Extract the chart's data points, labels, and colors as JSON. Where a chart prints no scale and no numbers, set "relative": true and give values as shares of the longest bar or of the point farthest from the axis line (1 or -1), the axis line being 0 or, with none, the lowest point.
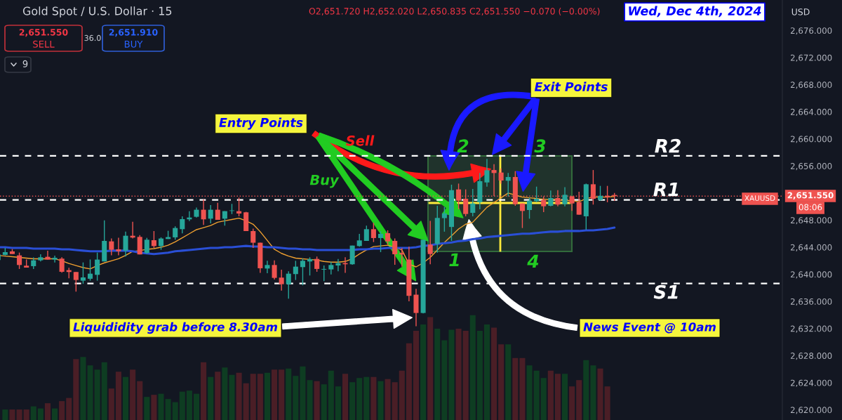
{
  "chart_data": [
    {
      "type": "candlestick",
      "title": "Gold Spot / U.S. Dollar · 15",
      "subtitle": "O2,651.720 H2,652.020 L2,650.835 C2,651.550 −0.070 (−0.00%)",
      "categories": [
        null,
        null,
        null,
        null,
        null,
        null,
        null,
        null,
        null,
        null,
        null,
        null,
        null,
        null,
        null,
        null,
        null,
        null,
        null,
        null,
        null,
        null,
        null,
        null,
        null,
        null,
        null,
        null,
        null,
        null,
        null,
        null,
        null,
        null,
        null,
        null,
        null,
        null,
        null,
        null,
        null,
        null,
        null,
        null,
        null,
        null,
        null,
        null,
        null,
        null,
        null,
        null,
        null,
        null,
        null,
        null,
        null,
        null,
        null,
        null,
        null,
        null,
        null,
        null,
        null,
        null,
        null,
        null,
        null,
        null,
        null,
        null,
        null,
        null,
        null,
        null,
        null,
        null,
        null,
        null,
        null,
        null,
        null,
        null,
        null,
        null,
        null,
        null
      ],
      "ohlc": [
        [
          2642.11,
          2643.0,
          2642.0,
          2642.94
        ],
        [
          2642.87,
          2643.9,
          2642.8,
          2643.28
        ],
        [
          2643.39,
          2643.73,
          2643.0,
          2643.0
        ],
        [
          2642.8,
          2643.21,
          2640.8,
          2641.38
        ],
        [
          2641.28,
          2642.2,
          2641.0,
          2641.0
        ],
        [
          2641.21,
          2642.5,
          2640.8,
          2642.07
        ],
        [
          2642.07,
          2642.97,
          2641.9,
          2642.52
        ],
        [
          2642.59,
          2643.49,
          2642.18,
          2642.18
        ],
        [
          2642.18,
          2642.77,
          2641.76,
          2642.45
        ],
        [
          2642.32,
          2642.52,
          2640.24,
          2640.38
        ],
        [
          2640.62,
          2640.97,
          2639.41,
          2640.35
        ],
        [
          2640.35,
          2640.35,
          2637.45,
          2639.17
        ],
        [
          2639.07,
          2641.76,
          2638.6,
          2639.55
        ],
        [
          2639.35,
          2642.2,
          2639.07,
          2640.1
        ],
        [
          2639.93,
          2643.21,
          2639.07,
          2642.18
        ],
        [
          2641.9,
          2647.98,
          2641.9,
          2644.94
        ],
        [
          2644.87,
          2645.29,
          2642.8,
          2643.63
        ],
        [
          2643.7,
          2645.4,
          2642.8,
          2643.42
        ],
        [
          2643.49,
          2646.32,
          2642.63,
          2645.7
        ],
        [
          2645.7,
          2647.77,
          2645.29,
          2645.43
        ],
        [
          2645.53,
          2645.8,
          2642.94,
          2642.94
        ],
        [
          2643.15,
          2645.39,
          2643.04,
          2645.11
        ],
        [
          2645.04,
          2646.39,
          2643.9,
          2644.18
        ],
        [
          2644.18,
          2645.46,
          2643.63,
          2645.29
        ],
        [
          2645.22,
          2646.43,
          2645.22,
          2645.5
        ],
        [
          2645.46,
          2647.08,
          2645.11,
          2646.84
        ],
        [
          2646.67,
          2648.57,
          2646.05,
          2648.15
        ],
        [
          2648.12,
          2649.33,
          2647.88,
          2648.39
        ],
        [
          2648.5,
          2649.85,
          2648.39,
          2649.54
        ],
        [
          2649.54,
          2651.05,
          2647.29,
          2648.12
        ],
        [
          2648.22,
          2650.23,
          2647.53,
          2649.54
        ],
        [
          2649.54,
          2650.57,
          2648.05,
          2648.05
        ],
        [
          2648.22,
          2649.33,
          2647.19,
          2649.33
        ],
        [
          2649.36,
          2650.4,
          2648.9,
          2649.4
        ],
        [
          2649.33,
          2651.33,
          2648.57,
          2648.98
        ],
        [
          2649.16,
          2649.23,
          2646.39,
          2646.39
        ],
        [
          2646.39,
          2646.74,
          2643.9,
          2644.67
        ],
        [
          2644.67,
          2644.67,
          2640.21,
          2640.9
        ],
        [
          2640.86,
          2642.0,
          2640.18,
          2641.38
        ],
        [
          2641.38,
          2642.07,
          2639.24,
          2639.48
        ],
        [
          2639.52,
          2640.7,
          2637.6,
          2638.55
        ],
        [
          2638.55,
          2640.45,
          2636.41,
          2640.1
        ],
        [
          2640.04,
          2642.0,
          2639.17,
          2641.14
        ],
        [
          2641.07,
          2642.35,
          2638.38,
          2642.0
        ],
        [
          2641.9,
          2642.52,
          2639.83,
          2642.25
        ],
        [
          2642.28,
          2642.63,
          2640.38,
          2640.8
        ],
        [
          2640.7,
          2641.31,
          2639.0,
          2640.8
        ],
        [
          2640.73,
          2641.83,
          2640.0,
          2641.38
        ],
        [
          2641.31,
          2642.28,
          2640.45,
          2641.66
        ],
        [
          2641.66,
          2642.52,
          2640.21,
          2641.49
        ],
        [
          2641.49,
          2644.25,
          2641.42,
          2644.25
        ],
        [
          2644.18,
          2645.98,
          2644.08,
          2645.01
        ],
        [
          2644.94,
          2647.19,
          2644.94,
          2646.67
        ],
        [
          2646.67,
          2647.6,
          2644.77,
          2645.36
        ],
        [
          2645.36,
          2646.39,
          2643.28,
          2645.98
        ],
        [
          2646.08,
          2646.5,
          2644.42,
          2644.87
        ],
        [
          2644.94,
          2645.29,
          2641.42,
          2642.97
        ],
        [
          2643.15,
          2643.9,
          2641.14,
          2642.94
        ],
        [
          2642.18,
          2644.08,
          2636.03,
          2636.83
        ],
        [
          2637.0,
          2637.86,
          2632.33,
          2634.3
        ],
        [
          2634.3,
          2645.11,
          2634.23,
          2645.11
        ],
        [
          2644.4,
          2647.9,
          2641.5,
          2643.0
        ],
        [
          2644.49,
          2650.12,
          2643.21,
          2648.33
        ],
        [
          2648.3,
          2649.95,
          2646.3,
          2649.0
        ],
        [
          2647.0,
          2653.23,
          2644.94,
          2652.43
        ],
        [
          2652.54,
          2653.4,
          2649.6,
          2650.88
        ],
        [
          2651.16,
          2652.54,
          2648.57,
          2648.91
        ],
        [
          2649.08,
          2652.6,
          2648.57,
          2650.47
        ],
        [
          2650.64,
          2654.96,
          2649.6,
          2653.75
        ],
        [
          2653.57,
          2657.03,
          2652.95,
          2655.37
        ],
        [
          2655.4,
          2656.27,
          2651.57,
          2654.96
        ],
        [
          2655.03,
          2655.65,
          2653.4,
          2653.85
        ],
        [
          2653.82,
          2654.96,
          2651.5,
          2654.37
        ],
        [
          2654.37,
          2655.23,
          2650.12,
          2650.36
        ],
        [
          2650.47,
          2650.47,
          2646.84,
          2649.36
        ],
        [
          2649.5,
          2651.33,
          2648.22,
          2650.88
        ],
        [
          2650.81,
          2652.95,
          2650.64,
          2651.16
        ],
        [
          2650.98,
          2651.5,
          2649.19,
          2650.05
        ],
        [
          2650.12,
          2652.37,
          2650.05,
          2651.26
        ],
        [
          2651.26,
          2652.43,
          2650.05,
          2650.3
        ],
        [
          2650.36,
          2652.88,
          2650.05,
          2651.74
        ],
        [
          2651.5,
          2651.57,
          2649.36,
          2650.47
        ],
        [
          2650.64,
          2652.2,
          2648.81,
          2648.81
        ],
        [
          2648.57,
          2653.4,
          2646.6,
          2653.3
        ],
        [
          2653.3,
          2655.4,
          2650.3,
          2651.16
        ],
        [
          2650.98,
          2653.06,
          2650.88,
          2651.6
        ],
        [
          2651.6,
          2653.06,
          2650.64,
          2651.4
        ],
        [
          2651.72,
          2652.02,
          2650.835,
          2651.55
        ]
      ],
      "colors": [
        "#26a69a",
        "#26a69a",
        "#ef5350",
        "#ef5350",
        "#ef5350",
        "#26a69a",
        "#26a69a",
        "#ef5350",
        "#26a69a",
        "#ef5350",
        "#ef5350",
        "#ef5350",
        "#26a69a",
        "#26a69a",
        "#26a69a",
        "#26a69a",
        "#ef5350",
        "#ef5350",
        "#26a69a",
        "#ef5350",
        "#ef5350",
        "#26a69a",
        "#ef5350",
        "#26a69a",
        "#26a69a",
        "#26a69a",
        "#26a69a",
        "#26a69a",
        "#26a69a",
        "#ef5350",
        "#26a69a",
        "#ef5350",
        "#26a69a",
        "#26a69a",
        "#ef5350",
        "#ef5350",
        "#ef5350",
        "#ef5350",
        "#26a69a",
        "#ef5350",
        "#ef5350",
        "#26a69a",
        "#26a69a",
        "#26a69a",
        "#26a69a",
        "#ef5350",
        "#26a69a",
        "#26a69a",
        "#26a69a",
        "#ef5350",
        "#26a69a",
        "#26a69a",
        "#26a69a",
        "#ef5350",
        "#26a69a",
        "#ef5350",
        "#ef5350",
        "#ef5350",
        "#ef5350",
        "#ef5350",
        "#26a69a",
        "#ef5350",
        "#26a69a",
        "#26a69a",
        "#26a69a",
        "#ef5350",
        "#ef5350",
        "#26a69a",
        "#26a69a",
        "#26a69a",
        "#ef5350",
        "#ef5350",
        "#26a69a",
        "#ef5350",
        "#ef5350",
        "#26a69a",
        "#26a69a",
        "#ef5350",
        "#26a69a",
        "#ef5350",
        "#26a69a",
        "#ef5350",
        "#ef5350",
        "#26a69a",
        "#ef5350",
        "#26a69a",
        "#ef5350",
        "#ef5350"
      ],
      "series": [
        {
          "type": "line",
          "color": "#f0a030",
          "values": [
            2642.8,
            2642.7,
            2642.6,
            2642.5,
            2642.4,
            2642.3,
            2642.3,
            2642.3,
            2642.3,
            2642.0,
            2641.6,
            2641.3,
            2641.0,
            2640.8,
            2641.3,
            2641.7,
            2642.0,
            2642.3,
            2642.8,
            2643.4,
            2643.5,
            2643.7,
            2643.8,
            2644.0,
            2644.3,
            2644.8,
            2645.4,
            2646.0,
            2646.6,
            2646.9,
            2647.2,
            2647.7,
            2647.9,
            2648.1,
            2648.3,
            2647.9,
            2647.4,
            2646.3,
            2645.0,
            2643.7,
            2643.1,
            2642.7,
            2642.4,
            2642.3,
            2642.2,
            2642.1,
            2641.9,
            2641.8,
            2641.8,
            2641.9,
            2642.3,
            2643.0,
            2643.6,
            2644.1,
            2644.2,
            2644.3,
            2644.0,
            2643.6,
            2641.5,
            2641.1,
            2641.7,
            2642.5,
            2643.6,
            2644.7,
            2645.7,
            2646.7,
            2647.4,
            2647.7,
            2648.8,
            2649.9,
            2650.6,
            2651.3,
            2652.0,
            2651.7,
            2651.4,
            2651.3,
            2651.2,
            2651.1,
            2651.0,
            2651.0,
            2650.9,
            2650.9,
            2650.7,
            2651.2,
            2651.4,
            2651.4,
            2651.4,
            2651.5
          ]
        },
        {
          "type": "line",
          "color": "#2a4fd6",
          "values": [
            2644.0,
            2644.0,
            2643.9,
            2643.9,
            2643.9,
            2643.8,
            2643.8,
            2643.8,
            2643.8,
            2643.7,
            2643.7,
            2643.6,
            2643.5,
            2643.4,
            2643.4,
            2643.4,
            2643.5,
            2643.5,
            2643.5,
            2643.4,
            2643.2,
            2643.1,
            2643.0,
            2643.1,
            2643.2,
            2643.4,
            2643.5,
            2643.6,
            2643.7,
            2643.8,
            2643.9,
            2643.9,
            2644.0,
            2644.0,
            2644.1,
            2644.2,
            2644.1,
            2644.1,
            2644.0,
            2644.0,
            2643.9,
            2643.8,
            2643.8,
            2643.7,
            2643.7,
            2643.6,
            2643.6,
            2643.6,
            2643.6,
            2643.6,
            2643.6,
            2643.7,
            2643.7,
            2643.8,
            2643.8,
            2643.9,
            2643.9,
            2643.9,
            2643.9,
            2644.0,
            2644.2,
            2644.3,
            2644.5,
            2644.6,
            2644.7,
            2644.9,
            2645.0,
            2645.2,
            2645.3,
            2645.5,
            2645.6,
            2645.7,
            2645.8,
            2645.9,
            2646.0,
            2646.0,
            2646.1,
            2646.2,
            2646.3,
            2646.3,
            2646.4,
            2646.4,
            2646.4,
            2646.5,
            2646.5,
            2646.6,
            2646.7,
            2646.9
          ]
        }
      ],
      "ylim": [
        2618.5,
        2680.5
      ],
      "yticks": [
        {
          "value": 2620,
          "label": "2,620.000"
        },
        {
          "value": 2624,
          "label": "2,624.000"
        },
        {
          "value": 2628,
          "label": "2,628.000"
        },
        {
          "value": 2632,
          "label": "2,632.000"
        },
        {
          "value": 2636,
          "label": "2,636.000"
        },
        {
          "value": 2640,
          "label": "2,640.000"
        },
        {
          "value": 2644,
          "label": "2,644.000"
        },
        {
          "value": 2648,
          "label": "2,648.000"
        },
        {
          "value": 2656,
          "label": "2,656.000"
        },
        {
          "value": 2660,
          "label": "2,660.000"
        },
        {
          "value": 2664,
          "label": "2,664.000"
        },
        {
          "value": 2668,
          "label": "2,668.000"
        },
        {
          "value": 2672,
          "label": "2,672.000"
        },
        {
          "value": 2676,
          "label": "2,676.000"
        }
      ],
      "tick_labels": "y",
      "ref_lines": [
        {
          "axis": "y",
          "value": 2657.5,
          "label": "R2",
          "color": "#ffffff",
          "line_style": "dashed"
        },
        {
          "axis": "y",
          "value": 2651.0,
          "label": "R1",
          "color": "#ffffff",
          "line_style": "dashed"
        },
        {
          "axis": "y",
          "value": 2638.65,
          "label": "S1",
          "color": "#ffffff",
          "line_style": "dashed"
        },
        {
          "axis": "y",
          "value": 2651.55,
          "label": "XAUUSD",
          "color": "#ef5350",
          "line_style": "dotted"
        }
      ],
      "annotations": [
        "2,651.550",
        "SELL",
        "36.0",
        "2,651.910",
        "BUY",
        "9",
        "USD",
        "Wed, Dec 4th, 2024",
        "Entry Points",
        "Exit Points",
        "Sell",
        "Buy",
        "1",
        "2",
        "3",
        "4",
        "Liquididity grab before 8.30am",
        "News Event @ 10am",
        "2,651.550",
        "08:06"
      ]
    },
    {
      "type": "bar",
      "relative": true,
      "categories": [
        null,
        null,
        null,
        null,
        null,
        null,
        null,
        null,
        null,
        null,
        null,
        null,
        null,
        null,
        null,
        null,
        null,
        null,
        null,
        null,
        null,
        null,
        null,
        null,
        null,
        null,
        null,
        null,
        null,
        null,
        null,
        null,
        null,
        null,
        null,
        null,
        null,
        null,
        null,
        null,
        null,
        null,
        null,
        null,
        null,
        null,
        null,
        null,
        null,
        null,
        null,
        null,
        null,
        null,
        null,
        null,
        null,
        null,
        null,
        null,
        null,
        null,
        null,
        null,
        null,
        null,
        null,
        null,
        null,
        null,
        null,
        null,
        null,
        null,
        null,
        null,
        null,
        null,
        null,
        null,
        null,
        null,
        null,
        null,
        null,
        null
      ],
      "values": [
        0.1,
        0.1,
        0.1,
        0.1,
        0.13,
        0.11,
        0.16,
        0.11,
        0.18,
        0.21,
        0.58,
        0.6,
        0.52,
        0.48,
        0.55,
        0.3,
        0.46,
        0.41,
        0.48,
        0.37,
        0.22,
        0.24,
        0.25,
        0.2,
        0.17,
        0.27,
        0.28,
        0.25,
        0.55,
        0.41,
        0.46,
        0.5,
        0.43,
        0.45,
        0.35,
        0.44,
        0.44,
        0.45,
        0.48,
        0.48,
        0.49,
        0.42,
        0.51,
        0.38,
        0.37,
        0.34,
        0.47,
        0.32,
        0.44,
        0.36,
        0.4,
        0.41,
        0.41,
        0.37,
        0.39,
        0.36,
        0.47,
        0.73,
        0.85,
        0.91,
        0.98,
        0.87,
        0.76,
        0.86,
        0.87,
        0.85,
        1.0,
        0.85,
        0.91,
        0.88,
        0.72,
        0.72,
        0.59,
        0.59,
        0.52,
        0.47,
        0.4,
        0.47,
        0.44,
        0.44,
        0.32,
        0.38,
        0.57,
        0.52,
        0.49,
        0.32
      ],
      "colors": [
        "#0e3d22",
        "#4a1e26",
        "#4a1e26",
        "#4a1e26",
        "#0e3d22",
        "#0e3d22",
        "#4a1e26",
        "#0e3d22",
        "#4a1e26",
        "#4a1e26",
        "#4a1e26",
        "#0e3d22",
        "#0e3d22",
        "#0e3d22",
        "#0e3d22",
        "#4a1e26",
        "#4a1e26",
        "#0e3d22",
        "#4a1e26",
        "#4a1e26",
        "#0e3d22",
        "#4a1e26",
        "#0e3d22",
        "#0e3d22",
        "#0e3d22",
        "#0e3d22",
        "#0e3d22",
        "#0e3d22",
        "#4a1e26",
        "#0e3d22",
        "#4a1e26",
        "#0e3d22",
        "#0e3d22",
        "#4a1e26",
        "#4a1e26",
        "#4a1e26",
        "#4a1e26",
        "#0e3d22",
        "#4a1e26",
        "#4a1e26",
        "#0e3d22",
        "#0e3d22",
        "#0e3d22",
        "#0e3d22",
        "#4a1e26",
        "#0e3d22",
        "#0e3d22",
        "#0e3d22",
        "#4a1e26",
        "#0e3d22",
        "#0e3d22",
        "#0e3d22",
        "#4a1e26",
        "#0e3d22",
        "#4a1e26",
        "#4a1e26",
        "#4a1e26",
        "#4a1e26",
        "#4a1e26",
        "#0e3d22",
        "#4a1e26",
        "#0e3d22",
        "#0e3d22",
        "#0e3d22",
        "#4a1e26",
        "#4a1e26",
        "#0e3d22",
        "#0e3d22",
        "#0e3d22",
        "#4a1e26",
        "#4a1e26",
        "#0e3d22",
        "#4a1e26",
        "#4a1e26",
        "#0e3d22",
        "#0e3d22",
        "#0e3d22",
        "#4a1e26",
        "#4a1e26",
        "#0e3d22",
        "#4a1e26",
        "#4a1e26",
        "#0e3d22",
        "#0e3d22",
        "#4a1e26",
        "#4a1e26"
      ]
    }
  ]
}
